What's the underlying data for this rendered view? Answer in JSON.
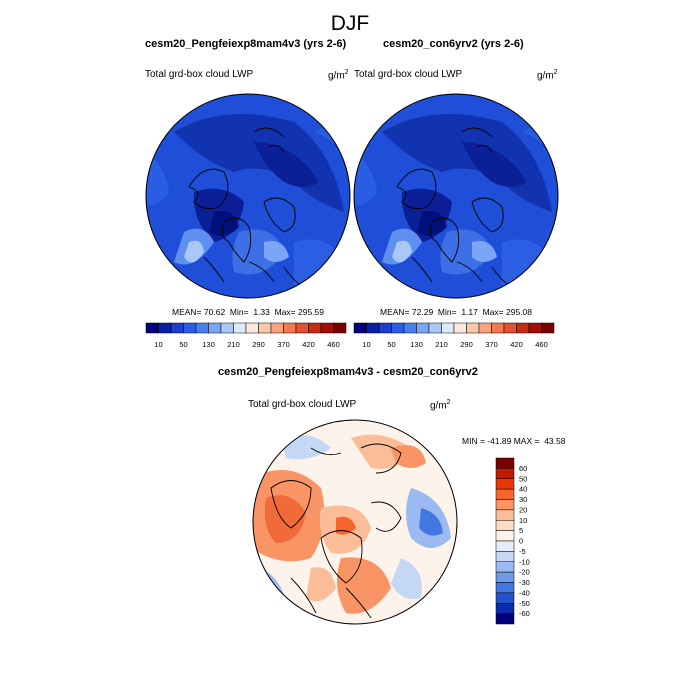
{
  "figure_title": "DJF",
  "panels": [
    {
      "case_title": "cesm20_Pengfeiexp8mam4v3 (yrs 2-6)",
      "variable": "Total grd-box cloud LWP",
      "units_base": "g/m",
      "units_exp": "2",
      "stats": {
        "mean_label": "MEAN=",
        "mean": "70.62",
        "min_label": "Min=",
        "min": "1.33",
        "max_label": "Max=",
        "max": "295.59"
      }
    },
    {
      "case_title": "cesm20_con6yrv2 (yrs 2-6)",
      "variable": "Total grd-box cloud LWP",
      "units_base": "g/m",
      "units_exp": "2",
      "stats": {
        "mean_label": "MEAN=",
        "mean": "72.29",
        "min_label": "Min=",
        "min": "1.17",
        "max_label": "Max=",
        "max": "295.08"
      }
    }
  ],
  "diff_panel": {
    "title": "cesm20_Pengfeiexp8mam4v3 - cesm20_con6yrv2",
    "variable": "Total grd-box cloud LWP",
    "units_base": "g/m",
    "units_exp": "2",
    "range_text": "MIN = -41.89 MAX =  43.58"
  },
  "abs_colorbar": {
    "colors": [
      "#00007f",
      "#0a1ca8",
      "#1c3ed2",
      "#2b5ee8",
      "#4a80f0",
      "#79a6f4",
      "#a9c8f8",
      "#dceafd",
      "#fde8dd",
      "#fbc7ab",
      "#f8a37e",
      "#f27b52",
      "#e4512d",
      "#c92a12",
      "#a10f06",
      "#7b0000"
    ],
    "labels": [
      "10",
      "50",
      "130",
      "210",
      "290",
      "370",
      "420",
      "460"
    ]
  },
  "diff_colorbar": {
    "colors": [
      "#7b0000",
      "#c01a00",
      "#e8380a",
      "#f7652e",
      "#f99464",
      "#fbbd98",
      "#fddcc6",
      "#fdf3ea",
      "#e5eefb",
      "#c4d8f6",
      "#9bbbf0",
      "#6f9be6",
      "#4478e0",
      "#2151cc",
      "#0a2bab",
      "#00007f"
    ],
    "labels": [
      "60",
      "50",
      "40",
      "30",
      "20",
      "10",
      "5",
      "0",
      "-5",
      "-10",
      "-20",
      "-30",
      "-40",
      "-50",
      "-60"
    ]
  }
}
